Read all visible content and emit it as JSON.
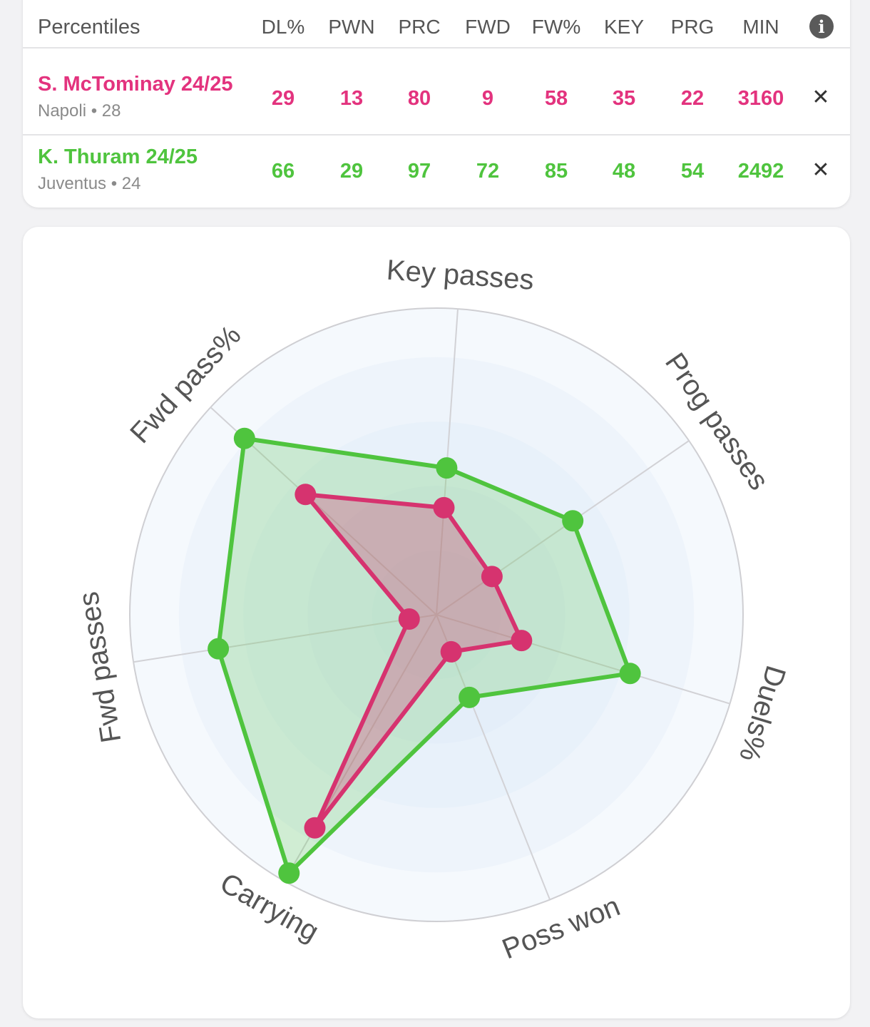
{
  "table": {
    "title": "Percentiles",
    "columns": [
      "DL%",
      "PWN",
      "PRC",
      "FWD",
      "FW%",
      "KEY",
      "PRG",
      "MIN"
    ],
    "info_icon": "info-icon",
    "players": [
      {
        "name": "S. McTominay 24/25",
        "team_age": "Napoli • 28",
        "color": "#e3337e",
        "values": [
          "29",
          "13",
          "80",
          "9",
          "58",
          "35",
          "22",
          "3160"
        ],
        "remove_icon": "close-icon"
      },
      {
        "name": "K. Thuram 24/25",
        "team_age": "Juventus • 24",
        "color": "#4fc43e",
        "values": [
          "66",
          "29",
          "97",
          "72",
          "85",
          "48",
          "54",
          "2492"
        ],
        "remove_icon": "close-icon"
      }
    ]
  },
  "chart_data": {
    "type": "radar",
    "axes": [
      "Key passes",
      "Prog passes",
      "Duels%",
      "Poss won",
      "Carrying",
      "Fwd passes",
      "Fwd pass%"
    ],
    "range": [
      0,
      100
    ],
    "series": [
      {
        "name": "S. McTominay 24/25",
        "color": "#d6336f",
        "values": [
          35,
          22,
          29,
          13,
          80,
          9,
          58
        ]
      },
      {
        "name": "K. Thuram 24/25",
        "color": "#4fc43e",
        "values": [
          48,
          54,
          66,
          29,
          97,
          72,
          85
        ]
      }
    ]
  }
}
